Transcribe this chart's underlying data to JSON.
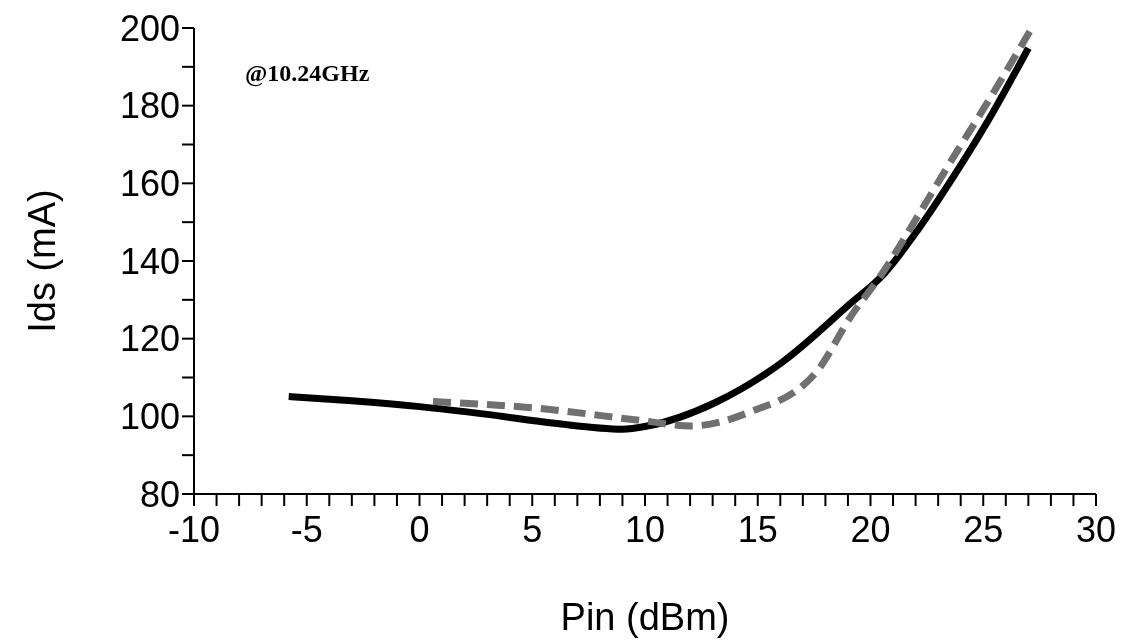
{
  "chart_data": {
    "type": "line",
    "xlabel": "Pin (dBm)",
    "ylabel": "Ids (mA)",
    "annotations": [
      "@10.24GHz"
    ],
    "xlim": [
      -10,
      30
    ],
    "ylim": [
      80,
      200
    ],
    "xticks": [
      -10,
      {
        "value": -9,
        "label": null
      },
      {
        "value": -8,
        "label": null
      },
      {
        "value": -7,
        "label": null
      },
      {
        "value": -6,
        "label": null
      },
      -5,
      {
        "value": -4,
        "label": null
      },
      {
        "value": -3,
        "label": null
      },
      {
        "value": -2,
        "label": null
      },
      {
        "value": -1,
        "label": null
      },
      0,
      {
        "value": 1,
        "label": null
      },
      {
        "value": 2,
        "label": null
      },
      {
        "value": 3,
        "label": null
      },
      {
        "value": 4,
        "label": null
      },
      5,
      {
        "value": 6,
        "label": null
      },
      {
        "value": 7,
        "label": null
      },
      {
        "value": 8,
        "label": null
      },
      {
        "value": 9,
        "label": null
      },
      10,
      {
        "value": 11,
        "label": null
      },
      {
        "value": 12,
        "label": null
      },
      {
        "value": 13,
        "label": null
      },
      {
        "value": 14,
        "label": null
      },
      15,
      {
        "value": 16,
        "label": null
      },
      {
        "value": 17,
        "label": null
      },
      {
        "value": 18,
        "label": null
      },
      {
        "value": 19,
        "label": null
      },
      20,
      {
        "value": 21,
        "label": null
      },
      {
        "value": 22,
        "label": null
      },
      {
        "value": 23,
        "label": null
      },
      {
        "value": 24,
        "label": null
      },
      25,
      {
        "value": 26,
        "label": null
      },
      {
        "value": 27,
        "label": null
      },
      {
        "value": 28,
        "label": null
      },
      {
        "value": 29,
        "label": null
      },
      30
    ],
    "yticks": [
      80,
      {
        "value": 90,
        "label": null
      },
      100,
      {
        "value": 110,
        "label": null
      },
      120,
      {
        "value": 130,
        "label": null
      },
      140,
      {
        "value": 150,
        "label": null
      },
      160,
      {
        "value": 170,
        "label": null
      },
      180,
      {
        "value": 190,
        "label": null
      },
      200
    ],
    "marker": "none",
    "series": [
      {
        "color": "#000000",
        "line_style": "solid",
        "x": [
          -5.8,
          -3,
          0,
          3,
          6,
          9,
          10.1,
          13.1,
          16.1,
          19.1,
          20.6,
          22.1,
          23.6,
          25.1,
          27
        ],
        "values": [
          105.1,
          104,
          102.5,
          100.5,
          98.2,
          96.7,
          97.5,
          103.5,
          114,
          129,
          136.7,
          148,
          161,
          175,
          194.8
        ]
      },
      {
        "color": "#707070",
        "line_style": "dashed",
        "x": [
          0.6,
          5,
          10,
          12,
          14.6,
          17.6,
          19.1,
          20.6,
          22.1,
          23.6,
          25.1,
          27.1
        ],
        "values": [
          103.8,
          102.2,
          98.8,
          97.5,
          101,
          111.4,
          125.5,
          137.5,
          151.6,
          166,
          180,
          199.5
        ]
      }
    ]
  }
}
